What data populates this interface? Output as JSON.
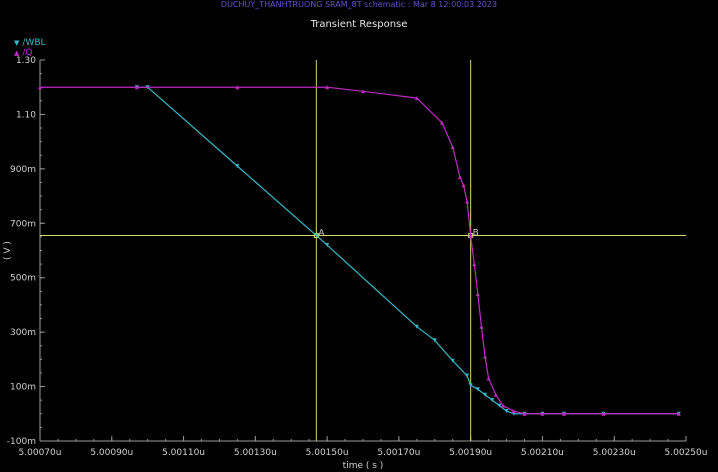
{
  "window": {
    "header_text": "DUCHUY_THANHTRUONG SRAM_8T schematic : Mar  8 12:00:03 2023",
    "title": "Transient Response"
  },
  "legend": [
    {
      "marker": "▼",
      "label": "/WBL",
      "color": "#37b8c9"
    },
    {
      "marker": "▲",
      "label": "/Q",
      "color": "#c02ac4"
    }
  ],
  "colors": {
    "background": "#000000",
    "wbl": "#37b8c9",
    "q": "#c02ac4",
    "cursor": "#d8d870",
    "axis": "#9a9a9a"
  },
  "chart_data": {
    "type": "line",
    "title": "Transient Response",
    "xlabel": "time ( s )",
    "ylabel": "( V )",
    "x_unit": "us",
    "y_unit": "V",
    "xlim": [
      5.0007,
      5.0025
    ],
    "ylim": [
      -0.1,
      1.3
    ],
    "x_ticks": [
      5.0007,
      5.0009,
      5.0011,
      5.0013,
      5.0015,
      5.0017,
      5.0019,
      5.0021,
      5.0023,
      5.0025
    ],
    "x_tick_labels": [
      "5.00070u",
      "5.00090u",
      "5.00110u",
      "5.00130u",
      "5.00150u",
      "5.00170u",
      "5.00190u",
      "5.00210u",
      "5.00230u",
      "5.00250u"
    ],
    "y_ticks": [
      -0.1,
      0.1,
      0.3,
      0.5,
      0.7,
      0.9,
      1.1,
      1.3
    ],
    "y_tick_labels": [
      "-100m",
      "100m",
      "300m",
      "500m",
      "700m",
      "900m",
      "1.10",
      "1.30"
    ],
    "grid": false,
    "series": [
      {
        "name": "/WBL",
        "color": "#37b8c9",
        "marker": "triangle-down",
        "points": [
          [
            5.00097,
            1.2
          ],
          [
            5.001,
            1.2
          ],
          [
            5.00125,
            0.91
          ],
          [
            5.00147,
            0.655
          ],
          [
            5.0015,
            0.62
          ],
          [
            5.00175,
            0.32
          ],
          [
            5.0018,
            0.27
          ],
          [
            5.00185,
            0.195
          ],
          [
            5.00189,
            0.14
          ],
          [
            5.0019,
            0.105
          ],
          [
            5.00192,
            0.09
          ],
          [
            5.00194,
            0.07
          ],
          [
            5.00196,
            0.05
          ],
          [
            5.00198,
            0.03
          ],
          [
            5.002,
            0.01
          ],
          [
            5.00202,
            0.0
          ],
          [
            5.00205,
            0.0
          ],
          [
            5.0021,
            0.0
          ],
          [
            5.00216,
            0.0
          ],
          [
            5.00227,
            0.0
          ],
          [
            5.00248,
            0.0
          ]
        ]
      },
      {
        "name": "/Q",
        "color": "#c02ac4",
        "marker": "triangle-up",
        "points": [
          [
            5.0007,
            1.2
          ],
          [
            5.00097,
            1.2
          ],
          [
            5.00125,
            1.2
          ],
          [
            5.0015,
            1.2
          ],
          [
            5.0016,
            1.185
          ],
          [
            5.00175,
            1.16
          ],
          [
            5.00182,
            1.07
          ],
          [
            5.00185,
            0.98
          ],
          [
            5.00187,
            0.87
          ],
          [
            5.00188,
            0.84
          ],
          [
            5.00189,
            0.78
          ],
          [
            5.0019,
            0.655
          ],
          [
            5.00191,
            0.55
          ],
          [
            5.00192,
            0.44
          ],
          [
            5.00193,
            0.32
          ],
          [
            5.00194,
            0.21
          ],
          [
            5.00195,
            0.13
          ],
          [
            5.00197,
            0.07
          ],
          [
            5.00199,
            0.03
          ],
          [
            5.00202,
            0.01
          ],
          [
            5.00205,
            0.0
          ],
          [
            5.0021,
            0.0
          ],
          [
            5.00216,
            0.0
          ],
          [
            5.00227,
            0.0
          ],
          [
            5.00248,
            0.0
          ]
        ]
      }
    ],
    "cursors": [
      {
        "label": "A",
        "x": 5.00147,
        "y": 0.655
      },
      {
        "label": "B",
        "x": 5.0019,
        "y": 0.655
      }
    ]
  }
}
